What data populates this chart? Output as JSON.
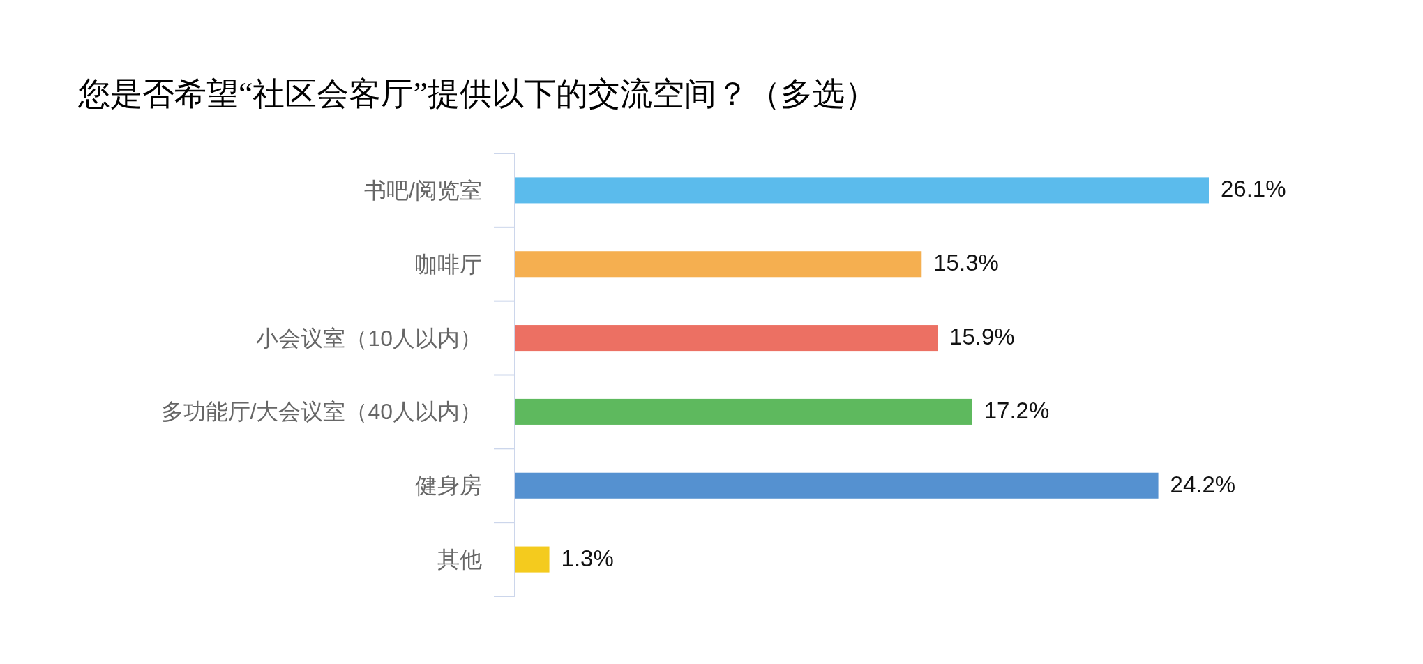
{
  "chart_data": {
    "type": "bar",
    "orientation": "horizontal",
    "title": "您是否希望“社区会客厅”提供以下的交流空间？（多选）",
    "categories": [
      "书吧/阅览室",
      "咖啡厅",
      "小会议室（10人以内）",
      "多功能厅/大会议室（40人以内）",
      "健身房",
      "其他"
    ],
    "values": [
      26.1,
      15.3,
      15.9,
      17.2,
      24.2,
      1.3
    ],
    "colors": [
      "#5bbbec",
      "#f5af50",
      "#ec7063",
      "#5eb95e",
      "#5591d0",
      "#f4cb1e"
    ],
    "value_labels": [
      "26.1%",
      "15.3%",
      "15.9%",
      "17.2%",
      "24.2%",
      "1.3%"
    ]
  }
}
